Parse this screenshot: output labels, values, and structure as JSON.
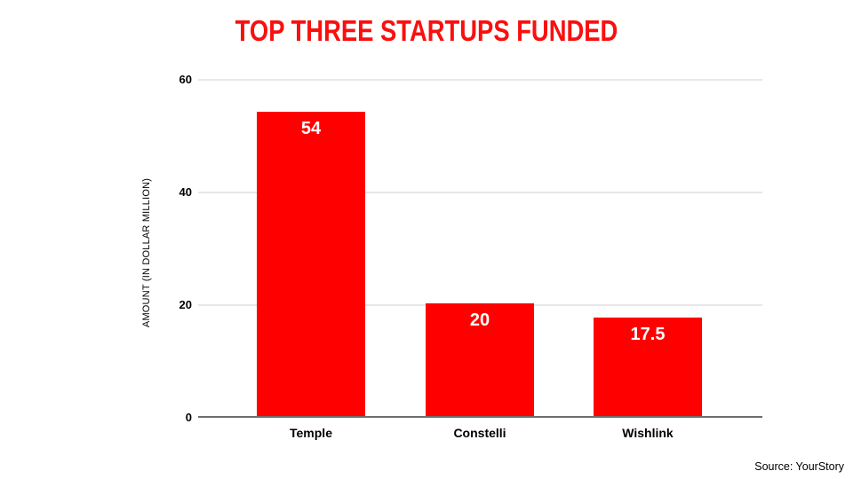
{
  "title": "TOP THREE STARTUPS FUNDED",
  "source_note": "Source: YourStory",
  "theme": {
    "title_color": "#fa0f0f",
    "bar_color": "#ff0000",
    "grid_color": "#e7e7e7",
    "axis_line_color": "#6e6e6e",
    "tick_label_color": "#000000",
    "value_label_color": "#ffffff"
  },
  "chart_data": {
    "type": "bar",
    "title": "TOP THREE STARTUPS FUNDED",
    "categories": [
      "Temple",
      "Constelli",
      "Wishlink"
    ],
    "values": [
      54,
      20,
      17.5
    ],
    "value_labels": [
      "54",
      "20",
      "17.5"
    ],
    "xlabel": "",
    "ylabel": "AMOUNT (IN DOLLAR MILLION)",
    "ylim": [
      0,
      60
    ],
    "yticks": [
      0,
      20,
      40,
      60
    ],
    "grid": "horizontal-only",
    "legend": "none",
    "bar_color": "#ff0000",
    "source": "Source: YourStory"
  }
}
